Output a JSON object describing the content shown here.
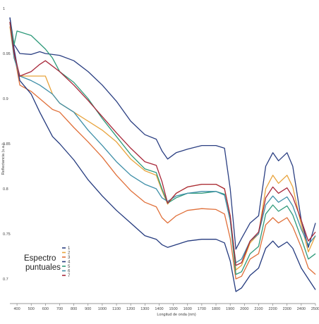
{
  "chart_data": {
    "type": "line",
    "title": "",
    "xlabel": "Longitud de onda (nm)",
    "ylabel": "Reflectancia (u.a.)",
    "xlim": [
      350,
      2500
    ],
    "ylim": [
      0.675,
      1.0
    ],
    "x_ticks": [
      "400",
      "500",
      "600",
      "700",
      "800",
      "900",
      "1000",
      "1100",
      "1200",
      "1300",
      "1400",
      "1500",
      "1600",
      "1700",
      "1800",
      "1900",
      "2000",
      "2100",
      "2200",
      "2300",
      "2400",
      "2500"
    ],
    "y_ticks": [
      {
        "value": 1.0,
        "label": "1"
      },
      {
        "value": 0.95,
        "label": "0.95"
      },
      {
        "value": 0.9,
        "label": "0.9"
      },
      {
        "value": 0.85,
        "label": "0.85"
      },
      {
        "value": 0.8,
        "label": "0.8"
      },
      {
        "value": 0.75,
        "label": "0.75"
      },
      {
        "value": 0.7,
        "label": "0.7"
      }
    ],
    "legend": {
      "title": "Espectro puntuales",
      "position": "bottom-left"
    },
    "series": [
      {
        "name": "1",
        "color": "#2b3f82",
        "points": [
          [
            350,
            0.99
          ],
          [
            380,
            0.96
          ],
          [
            420,
            0.95
          ],
          [
            500,
            0.949
          ],
          [
            560,
            0.952
          ],
          [
            600,
            0.95
          ],
          [
            700,
            0.948
          ],
          [
            800,
            0.942
          ],
          [
            900,
            0.93
          ],
          [
            1000,
            0.915
          ],
          [
            1100,
            0.897
          ],
          [
            1200,
            0.875
          ],
          [
            1300,
            0.86
          ],
          [
            1380,
            0.855
          ],
          [
            1420,
            0.842
          ],
          [
            1460,
            0.833
          ],
          [
            1520,
            0.84
          ],
          [
            1600,
            0.844
          ],
          [
            1700,
            0.848
          ],
          [
            1800,
            0.848
          ],
          [
            1860,
            0.845
          ],
          [
            1900,
            0.8
          ],
          [
            1940,
            0.733
          ],
          [
            1980,
            0.745
          ],
          [
            2040,
            0.762
          ],
          [
            2100,
            0.77
          ],
          [
            2150,
            0.825
          ],
          [
            2200,
            0.84
          ],
          [
            2240,
            0.831
          ],
          [
            2300,
            0.84
          ],
          [
            2340,
            0.825
          ],
          [
            2400,
            0.765
          ],
          [
            2450,
            0.735
          ],
          [
            2500,
            0.762
          ]
        ]
      },
      {
        "name": "2",
        "color": "#e8a33c",
        "points": [
          [
            350,
            0.98
          ],
          [
            380,
            0.945
          ],
          [
            420,
            0.925
          ],
          [
            500,
            0.925
          ],
          [
            600,
            0.925
          ],
          [
            650,
            0.905
          ],
          [
            700,
            0.895
          ],
          [
            800,
            0.885
          ],
          [
            900,
            0.875
          ],
          [
            1000,
            0.865
          ],
          [
            1100,
            0.852
          ],
          [
            1200,
            0.833
          ],
          [
            1300,
            0.82
          ],
          [
            1380,
            0.815
          ],
          [
            1420,
            0.798
          ],
          [
            1460,
            0.783
          ],
          [
            1520,
            0.795
          ],
          [
            1600,
            0.802
          ],
          [
            1700,
            0.805
          ],
          [
            1800,
            0.805
          ],
          [
            1860,
            0.8
          ],
          [
            1900,
            0.77
          ],
          [
            1940,
            0.71
          ],
          [
            1980,
            0.715
          ],
          [
            2040,
            0.74
          ],
          [
            2100,
            0.75
          ],
          [
            2150,
            0.8
          ],
          [
            2200,
            0.815
          ],
          [
            2240,
            0.806
          ],
          [
            2300,
            0.815
          ],
          [
            2340,
            0.802
          ],
          [
            2400,
            0.76
          ],
          [
            2450,
            0.73
          ],
          [
            2500,
            0.748
          ]
        ]
      },
      {
        "name": "3",
        "color": "#e0703a",
        "points": [
          [
            350,
            0.985
          ],
          [
            380,
            0.95
          ],
          [
            420,
            0.915
          ],
          [
            500,
            0.908
          ],
          [
            560,
            0.9
          ],
          [
            650,
            0.888
          ],
          [
            700,
            0.885
          ],
          [
            800,
            0.868
          ],
          [
            900,
            0.852
          ],
          [
            1000,
            0.835
          ],
          [
            1100,
            0.815
          ],
          [
            1200,
            0.798
          ],
          [
            1300,
            0.785
          ],
          [
            1380,
            0.78
          ],
          [
            1420,
            0.768
          ],
          [
            1460,
            0.762
          ],
          [
            1520,
            0.77
          ],
          [
            1600,
            0.776
          ],
          [
            1700,
            0.778
          ],
          [
            1800,
            0.777
          ],
          [
            1860,
            0.772
          ],
          [
            1900,
            0.745
          ],
          [
            1940,
            0.7
          ],
          [
            1980,
            0.703
          ],
          [
            2040,
            0.722
          ],
          [
            2100,
            0.728
          ],
          [
            2150,
            0.76
          ],
          [
            2200,
            0.768
          ],
          [
            2240,
            0.762
          ],
          [
            2300,
            0.768
          ],
          [
            2340,
            0.758
          ],
          [
            2400,
            0.735
          ],
          [
            2450,
            0.712
          ],
          [
            2500,
            0.705
          ]
        ]
      },
      {
        "name": "4",
        "color": "#243a7e",
        "points": [
          [
            350,
            0.99
          ],
          [
            380,
            0.955
          ],
          [
            420,
            0.92
          ],
          [
            500,
            0.905
          ],
          [
            560,
            0.885
          ],
          [
            650,
            0.858
          ],
          [
            700,
            0.85
          ],
          [
            800,
            0.832
          ],
          [
            900,
            0.81
          ],
          [
            1000,
            0.792
          ],
          [
            1100,
            0.776
          ],
          [
            1200,
            0.762
          ],
          [
            1300,
            0.748
          ],
          [
            1380,
            0.744
          ],
          [
            1420,
            0.738
          ],
          [
            1460,
            0.735
          ],
          [
            1520,
            0.738
          ],
          [
            1600,
            0.742
          ],
          [
            1700,
            0.744
          ],
          [
            1800,
            0.744
          ],
          [
            1860,
            0.74
          ],
          [
            1900,
            0.72
          ],
          [
            1940,
            0.686
          ],
          [
            1980,
            0.69
          ],
          [
            2040,
            0.704
          ],
          [
            2100,
            0.712
          ],
          [
            2150,
            0.734
          ],
          [
            2200,
            0.742
          ],
          [
            2240,
            0.735
          ],
          [
            2300,
            0.741
          ],
          [
            2340,
            0.734
          ],
          [
            2400,
            0.712
          ],
          [
            2450,
            0.7
          ],
          [
            2500,
            0.688
          ]
        ]
      },
      {
        "name": "5",
        "color": "#2f9a7a",
        "points": [
          [
            350,
            0.985
          ],
          [
            380,
            0.96
          ],
          [
            400,
            0.975
          ],
          [
            500,
            0.97
          ],
          [
            600,
            0.955
          ],
          [
            650,
            0.945
          ],
          [
            700,
            0.93
          ],
          [
            800,
            0.918
          ],
          [
            900,
            0.9
          ],
          [
            1000,
            0.878
          ],
          [
            1100,
            0.858
          ],
          [
            1200,
            0.838
          ],
          [
            1300,
            0.822
          ],
          [
            1380,
            0.818
          ],
          [
            1420,
            0.8
          ],
          [
            1460,
            0.784
          ],
          [
            1520,
            0.79
          ],
          [
            1600,
            0.795
          ],
          [
            1700,
            0.795
          ],
          [
            1800,
            0.797
          ],
          [
            1860,
            0.794
          ],
          [
            1900,
            0.765
          ],
          [
            1940,
            0.705
          ],
          [
            1980,
            0.708
          ],
          [
            2040,
            0.728
          ],
          [
            2100,
            0.736
          ],
          [
            2150,
            0.772
          ],
          [
            2200,
            0.782
          ],
          [
            2240,
            0.775
          ],
          [
            2300,
            0.781
          ],
          [
            2340,
            0.771
          ],
          [
            2400,
            0.745
          ],
          [
            2450,
            0.722
          ],
          [
            2500,
            0.728
          ]
        ]
      },
      {
        "name": "6",
        "color": "#3f8fa8",
        "points": [
          [
            350,
            0.985
          ],
          [
            380,
            0.945
          ],
          [
            420,
            0.925
          ],
          [
            500,
            0.92
          ],
          [
            560,
            0.915
          ],
          [
            650,
            0.905
          ],
          [
            700,
            0.895
          ],
          [
            800,
            0.885
          ],
          [
            900,
            0.865
          ],
          [
            1000,
            0.848
          ],
          [
            1100,
            0.83
          ],
          [
            1200,
            0.815
          ],
          [
            1300,
            0.805
          ],
          [
            1380,
            0.8
          ],
          [
            1420,
            0.79
          ],
          [
            1460,
            0.786
          ],
          [
            1520,
            0.792
          ],
          [
            1600,
            0.795
          ],
          [
            1700,
            0.797
          ],
          [
            1800,
            0.797
          ],
          [
            1860,
            0.793
          ],
          [
            1900,
            0.765
          ],
          [
            1940,
            0.718
          ],
          [
            1980,
            0.722
          ],
          [
            2040,
            0.742
          ],
          [
            2100,
            0.75
          ],
          [
            2150,
            0.782
          ],
          [
            2200,
            0.792
          ],
          [
            2240,
            0.785
          ],
          [
            2300,
            0.791
          ],
          [
            2340,
            0.781
          ],
          [
            2400,
            0.755
          ],
          [
            2450,
            0.738
          ],
          [
            2500,
            0.748
          ]
        ]
      },
      {
        "name": "7",
        "color": "#a8283a",
        "points": [
          [
            350,
            0.985
          ],
          [
            380,
            0.95
          ],
          [
            420,
            0.925
          ],
          [
            500,
            0.93
          ],
          [
            560,
            0.938
          ],
          [
            600,
            0.942
          ],
          [
            700,
            0.93
          ],
          [
            800,
            0.915
          ],
          [
            900,
            0.898
          ],
          [
            1000,
            0.88
          ],
          [
            1100,
            0.862
          ],
          [
            1200,
            0.845
          ],
          [
            1300,
            0.83
          ],
          [
            1380,
            0.826
          ],
          [
            1420,
            0.808
          ],
          [
            1460,
            0.784
          ],
          [
            1520,
            0.795
          ],
          [
            1600,
            0.802
          ],
          [
            1700,
            0.805
          ],
          [
            1800,
            0.805
          ],
          [
            1860,
            0.8
          ],
          [
            1900,
            0.77
          ],
          [
            1940,
            0.715
          ],
          [
            1980,
            0.718
          ],
          [
            2040,
            0.742
          ],
          [
            2100,
            0.752
          ],
          [
            2150,
            0.79
          ],
          [
            2200,
            0.802
          ],
          [
            2240,
            0.795
          ],
          [
            2300,
            0.801
          ],
          [
            2340,
            0.791
          ],
          [
            2400,
            0.765
          ],
          [
            2450,
            0.742
          ],
          [
            2500,
            0.752
          ]
        ]
      }
    ]
  }
}
